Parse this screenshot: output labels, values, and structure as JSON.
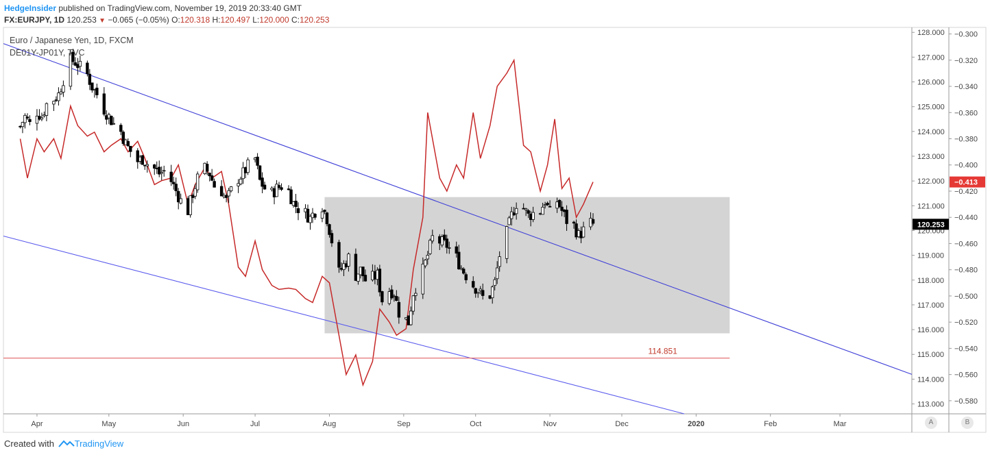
{
  "header": {
    "user": "HedgeInsider",
    "published": " published on TradingView.com, November 19, 2019 20:33:40 GMT",
    "symbol": "FX:EURJPY, 1D",
    "last": "120.253",
    "change": "−0.065 (−0.05%)",
    "o_label": "O:",
    "open": "120.318",
    "h_label": "H:",
    "high": "120.497",
    "l_label": "L:",
    "low": "120.000",
    "c_label": "C:",
    "close": "120.253"
  },
  "legend": {
    "main": "Euro / Japanese Yen, 1D, FXCM",
    "overlay": "DE01Y-JP01Y, TVC"
  },
  "footer": {
    "created": "Created with",
    "brand": "TradingView"
  },
  "axis_buttons": {
    "left": "A",
    "right": "B"
  },
  "colors": {
    "up": "#ffffff",
    "down": "#000000",
    "overlay_line": "#c62828",
    "channel_upper": "#3f3fd8",
    "channel_lower": "#5a5aee",
    "support_line": "#e57373",
    "box_fill": "#cfcfcf"
  },
  "chart_data": {
    "type": "candlestick",
    "series": [
      {
        "name": "Euro / Japanese Yen, 1D, FXCM",
        "axis": "left",
        "close_path": [
          [
            "2019-03-25",
            124.2
          ],
          [
            "2019-03-27",
            124.6
          ],
          [
            "2019-03-29",
            124.3
          ],
          [
            "2019-04-01",
            124.8
          ],
          [
            "2019-04-03",
            124.6
          ],
          [
            "2019-04-05",
            125.1
          ],
          [
            "2019-04-08",
            125.3
          ],
          [
            "2019-04-10",
            125.5
          ],
          [
            "2019-04-12",
            126.1
          ],
          [
            "2019-04-15",
            126.9
          ],
          [
            "2019-04-17",
            126.8
          ],
          [
            "2019-04-19",
            126.6
          ],
          [
            "2019-04-22",
            126.3
          ],
          [
            "2019-04-24",
            125.8
          ],
          [
            "2019-04-26",
            125.5
          ],
          [
            "2019-04-29",
            124.9
          ],
          [
            "2019-05-01",
            124.6
          ],
          [
            "2019-05-03",
            124.3
          ],
          [
            "2019-05-06",
            124.0
          ],
          [
            "2019-05-08",
            123.5
          ],
          [
            "2019-05-10",
            123.2
          ],
          [
            "2019-05-13",
            122.8
          ],
          [
            "2019-05-15",
            122.9
          ],
          [
            "2019-05-17",
            122.7
          ],
          [
            "2019-05-20",
            122.5
          ],
          [
            "2019-05-22",
            122.3
          ],
          [
            "2019-05-24",
            122.4
          ],
          [
            "2019-05-27",
            122.0
          ],
          [
            "2019-05-29",
            121.6
          ],
          [
            "2019-05-31",
            121.2
          ],
          [
            "2019-06-03",
            120.8
          ],
          [
            "2019-06-05",
            121.5
          ],
          [
            "2019-06-07",
            122.1
          ],
          [
            "2019-06-10",
            122.5
          ],
          [
            "2019-06-12",
            122.3
          ],
          [
            "2019-06-14",
            121.8
          ],
          [
            "2019-06-17",
            121.6
          ],
          [
            "2019-06-19",
            121.2
          ],
          [
            "2019-06-21",
            121.6
          ],
          [
            "2019-06-24",
            122.1
          ],
          [
            "2019-06-26",
            122.3
          ],
          [
            "2019-06-28",
            122.6
          ],
          [
            "2019-07-01",
            122.9
          ],
          [
            "2019-07-03",
            122.0
          ],
          [
            "2019-07-05",
            121.7
          ],
          [
            "2019-07-08",
            121.5
          ],
          [
            "2019-07-10",
            121.7
          ],
          [
            "2019-07-12",
            121.8
          ],
          [
            "2019-07-15",
            121.6
          ],
          [
            "2019-07-17",
            121.1
          ],
          [
            "2019-07-19",
            120.9
          ],
          [
            "2019-07-22",
            120.7
          ],
          [
            "2019-07-24",
            120.5
          ],
          [
            "2019-07-26",
            120.8
          ],
          [
            "2019-07-29",
            121.0
          ],
          [
            "2019-07-31",
            120.5
          ],
          [
            "2019-08-02",
            119.6
          ],
          [
            "2019-08-05",
            118.3
          ],
          [
            "2019-08-07",
            118.6
          ],
          [
            "2019-08-09",
            118.9
          ],
          [
            "2019-08-12",
            118.2
          ],
          [
            "2019-08-14",
            118.4
          ],
          [
            "2019-08-16",
            118.0
          ],
          [
            "2019-08-19",
            118.1
          ],
          [
            "2019-08-21",
            118.2
          ],
          [
            "2019-08-23",
            117.2
          ],
          [
            "2019-08-26",
            117.6
          ],
          [
            "2019-08-28",
            117.5
          ],
          [
            "2019-08-30",
            116.7
          ],
          [
            "2019-09-03",
            116.3
          ],
          [
            "2019-09-05",
            117.5
          ],
          [
            "2019-09-09",
            118.4
          ],
          [
            "2019-09-11",
            119.0
          ],
          [
            "2019-09-13",
            119.7
          ],
          [
            "2019-09-17",
            119.5
          ],
          [
            "2019-09-19",
            119.4
          ],
          [
            "2019-09-23",
            118.9
          ],
          [
            "2019-09-25",
            118.5
          ],
          [
            "2019-09-27",
            118.2
          ],
          [
            "2019-09-30",
            117.8
          ],
          [
            "2019-10-02",
            117.6
          ],
          [
            "2019-10-04",
            117.3
          ],
          [
            "2019-10-07",
            117.4
          ],
          [
            "2019-10-09",
            117.9
          ],
          [
            "2019-10-11",
            119.0
          ],
          [
            "2019-10-14",
            119.9
          ],
          [
            "2019-10-16",
            120.6
          ],
          [
            "2019-10-18",
            121.1
          ],
          [
            "2019-10-21",
            120.9
          ],
          [
            "2019-10-23",
            120.6
          ],
          [
            "2019-10-25",
            120.7
          ],
          [
            "2019-10-28",
            120.8
          ],
          [
            "2019-10-30",
            121.2
          ],
          [
            "2019-11-01",
            120.7
          ],
          [
            "2019-11-04",
            121.2
          ],
          [
            "2019-11-06",
            120.8
          ],
          [
            "2019-11-08",
            120.4
          ],
          [
            "2019-11-11",
            120.2
          ],
          [
            "2019-11-13",
            119.8
          ],
          [
            "2019-11-15",
            120.0
          ],
          [
            "2019-11-18",
            120.3
          ],
          [
            "2019-11-19",
            120.253
          ]
        ]
      },
      {
        "name": "DE01Y-JP01Y, TVC",
        "axis": "right",
        "path": [
          [
            "2019-03-25",
            -0.38
          ],
          [
            "2019-03-28",
            -0.41
          ],
          [
            "2019-04-01",
            -0.38
          ],
          [
            "2019-04-04",
            -0.39
          ],
          [
            "2019-04-08",
            -0.38
          ],
          [
            "2019-04-11",
            -0.395
          ],
          [
            "2019-04-15",
            -0.355
          ],
          [
            "2019-04-18",
            -0.37
          ],
          [
            "2019-04-22",
            -0.378
          ],
          [
            "2019-04-25",
            -0.375
          ],
          [
            "2019-04-29",
            -0.39
          ],
          [
            "2019-05-02",
            -0.385
          ],
          [
            "2019-05-06",
            -0.38
          ],
          [
            "2019-05-09",
            -0.39
          ],
          [
            "2019-05-13",
            -0.382
          ],
          [
            "2019-05-16",
            -0.395
          ],
          [
            "2019-05-20",
            -0.415
          ],
          [
            "2019-05-23",
            -0.412
          ],
          [
            "2019-05-27",
            -0.41
          ],
          [
            "2019-05-30",
            -0.4
          ],
          [
            "2019-06-03",
            -0.43
          ],
          [
            "2019-06-06",
            -0.415
          ],
          [
            "2019-06-10",
            -0.402
          ],
          [
            "2019-06-13",
            -0.41
          ],
          [
            "2019-06-17",
            -0.405
          ],
          [
            "2019-06-20",
            -0.43
          ],
          [
            "2019-06-24",
            -0.478
          ],
          [
            "2019-06-27",
            -0.485
          ],
          [
            "2019-07-01",
            -0.458
          ],
          [
            "2019-07-04",
            -0.48
          ],
          [
            "2019-07-08",
            -0.492
          ],
          [
            "2019-07-11",
            -0.495
          ],
          [
            "2019-07-15",
            -0.494
          ],
          [
            "2019-07-18",
            -0.495
          ],
          [
            "2019-07-22",
            -0.502
          ],
          [
            "2019-07-25",
            -0.505
          ],
          [
            "2019-07-29",
            -0.485
          ],
          [
            "2019-08-01",
            -0.49
          ],
          [
            "2019-08-05",
            -0.53
          ],
          [
            "2019-08-08",
            -0.56
          ],
          [
            "2019-08-12",
            -0.545
          ],
          [
            "2019-08-15",
            -0.568
          ],
          [
            "2019-08-19",
            -0.55
          ],
          [
            "2019-08-22",
            -0.51
          ],
          [
            "2019-08-26",
            -0.52
          ],
          [
            "2019-08-29",
            -0.53
          ],
          [
            "2019-09-02",
            -0.525
          ],
          [
            "2019-09-05",
            -0.48
          ],
          [
            "2019-09-09",
            -0.44
          ],
          [
            "2019-09-11",
            -0.36
          ],
          [
            "2019-09-16",
            -0.41
          ],
          [
            "2019-09-19",
            -0.42
          ],
          [
            "2019-09-23",
            -0.4
          ],
          [
            "2019-09-26",
            -0.41
          ],
          [
            "2019-09-30",
            -0.36
          ],
          [
            "2019-10-03",
            -0.395
          ],
          [
            "2019-10-07",
            -0.37
          ],
          [
            "2019-10-10",
            -0.34
          ],
          [
            "2019-10-14",
            -0.33
          ],
          [
            "2019-10-17",
            -0.32
          ],
          [
            "2019-10-21",
            -0.385
          ],
          [
            "2019-10-24",
            -0.39
          ],
          [
            "2019-10-28",
            -0.42
          ],
          [
            "2019-10-31",
            -0.4
          ],
          [
            "2019-11-03",
            -0.365
          ],
          [
            "2019-11-06",
            -0.418
          ],
          [
            "2019-11-09",
            -0.41
          ],
          [
            "2019-11-12",
            -0.44
          ],
          [
            "2019-11-15",
            -0.43
          ],
          [
            "2019-11-19",
            -0.413
          ]
        ]
      }
    ],
    "last_labels": {
      "left": "120.253",
      "right": "−0.413"
    },
    "horizontal_line": {
      "value": 114.851,
      "label": "114.851"
    },
    "channel": {
      "upper": [
        [
          "2019-03-25",
          127.3
        ],
        [
          "2019-12-31",
          117.4
        ]
      ],
      "lower": [
        [
          "2019-03-25",
          119.6
        ],
        [
          "2019-12-31",
          112.5
        ]
      ]
    },
    "range_box": {
      "x0": "2019-07-30",
      "x1": "2020-01-15",
      "y0": 115.85,
      "y1": 121.35
    },
    "x_ticks": [
      "Apr",
      "May",
      "Jun",
      "Jul",
      "Aug",
      "Sep",
      "Oct",
      "Nov",
      "Dec",
      "2020",
      "Feb",
      "Mar"
    ],
    "y_left_ticks": [
      "128.000",
      "127.000",
      "126.000",
      "125.000",
      "124.000",
      "123.000",
      "122.000",
      "121.000",
      "120.000",
      "119.000",
      "118.000",
      "117.000",
      "116.000",
      "115.000",
      "114.000",
      "113.000"
    ],
    "y_right_ticks": [
      "−0.300",
      "−0.320",
      "−0.340",
      "−0.360",
      "−0.380",
      "−0.400",
      "−0.420",
      "−0.440",
      "−0.460",
      "−0.480",
      "−0.500",
      "−0.520",
      "−0.540",
      "−0.560",
      "−0.580"
    ],
    "ylim_left": [
      112.6,
      128.2
    ],
    "ylim_right": [
      -0.59,
      -0.295
    ]
  }
}
